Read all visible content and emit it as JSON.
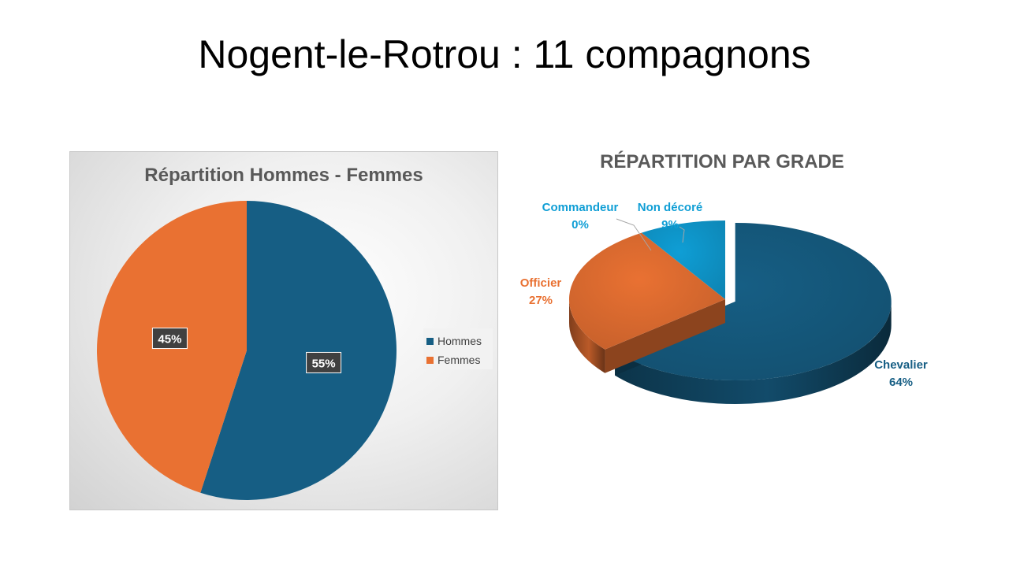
{
  "slide": {
    "title": "Nogent-le-Rotrou : 11 compagnons"
  },
  "chart_data": [
    {
      "type": "pie",
      "title": "Répartition Hommes - Femmes",
      "categories": [
        "Hommes",
        "Femmes"
      ],
      "values": [
        55,
        45
      ],
      "labels": [
        "55%",
        "45%"
      ],
      "colors": [
        "#165e84",
        "#e97132"
      ],
      "legend": "right",
      "legend_entries": [
        "Hommes",
        "Femmes"
      ]
    },
    {
      "type": "pie",
      "style": "3d-exploded",
      "title": "RÉPARTITION PAR GRADE",
      "categories": [
        "Chevalier",
        "Officier",
        "Commandeur",
        "Non décoré"
      ],
      "values": [
        64,
        27,
        0,
        9
      ],
      "labels": [
        "64%",
        "27%",
        "0%",
        "9%"
      ],
      "colors": [
        "#165e84",
        "#e97132",
        "#0f9ed5",
        "#0f9ed5"
      ],
      "label_colors": [
        "#165e84",
        "#e97132",
        "#0f9ed5",
        "#0f9ed5"
      ],
      "legend": "none"
    }
  ]
}
